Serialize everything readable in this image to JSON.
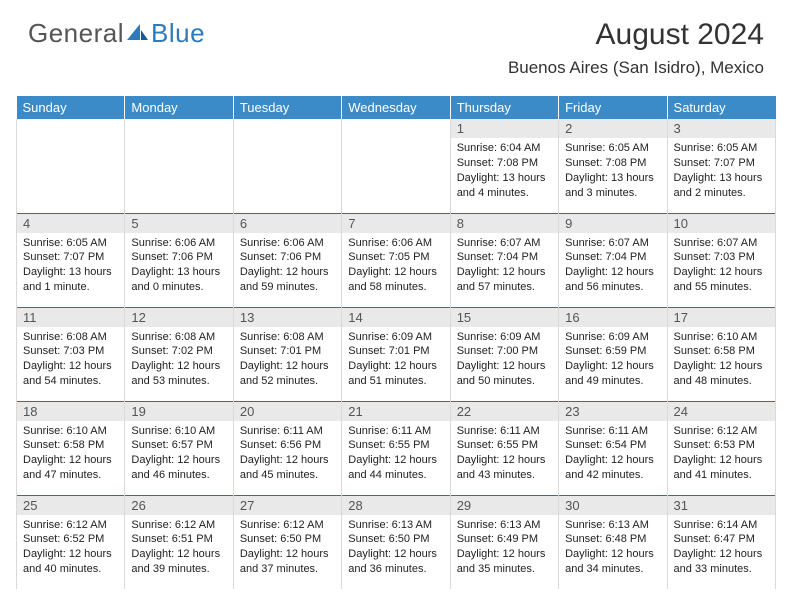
{
  "brand": {
    "part1": "General",
    "part2": "Blue"
  },
  "title": "August 2024",
  "location": "Buenos Aires (San Isidro), Mexico",
  "colors": {
    "header_bg": "#3b8bc9",
    "header_text": "#ffffff",
    "row_divider": "#2d6fa3",
    "daynum_bg": "#e9e9e9",
    "cell_border": "#d9d9d9",
    "brand_gray": "#555555",
    "brand_blue": "#2d7bbd"
  },
  "typography": {
    "title_fontsize": 30,
    "location_fontsize": 17,
    "header_fontsize": 13,
    "daynum_fontsize": 13,
    "body_fontsize": 11
  },
  "day_headers": [
    "Sunday",
    "Monday",
    "Tuesday",
    "Wednesday",
    "Thursday",
    "Friday",
    "Saturday"
  ],
  "weeks": [
    [
      null,
      null,
      null,
      null,
      {
        "n": "1",
        "sr": "6:04 AM",
        "ss": "7:08 PM",
        "dl": "13 hours and 4 minutes."
      },
      {
        "n": "2",
        "sr": "6:05 AM",
        "ss": "7:08 PM",
        "dl": "13 hours and 3 minutes."
      },
      {
        "n": "3",
        "sr": "6:05 AM",
        "ss": "7:07 PM",
        "dl": "13 hours and 2 minutes."
      }
    ],
    [
      {
        "n": "4",
        "sr": "6:05 AM",
        "ss": "7:07 PM",
        "dl": "13 hours and 1 minute."
      },
      {
        "n": "5",
        "sr": "6:06 AM",
        "ss": "7:06 PM",
        "dl": "13 hours and 0 minutes."
      },
      {
        "n": "6",
        "sr": "6:06 AM",
        "ss": "7:06 PM",
        "dl": "12 hours and 59 minutes."
      },
      {
        "n": "7",
        "sr": "6:06 AM",
        "ss": "7:05 PM",
        "dl": "12 hours and 58 minutes."
      },
      {
        "n": "8",
        "sr": "6:07 AM",
        "ss": "7:04 PM",
        "dl": "12 hours and 57 minutes."
      },
      {
        "n": "9",
        "sr": "6:07 AM",
        "ss": "7:04 PM",
        "dl": "12 hours and 56 minutes."
      },
      {
        "n": "10",
        "sr": "6:07 AM",
        "ss": "7:03 PM",
        "dl": "12 hours and 55 minutes."
      }
    ],
    [
      {
        "n": "11",
        "sr": "6:08 AM",
        "ss": "7:03 PM",
        "dl": "12 hours and 54 minutes."
      },
      {
        "n": "12",
        "sr": "6:08 AM",
        "ss": "7:02 PM",
        "dl": "12 hours and 53 minutes."
      },
      {
        "n": "13",
        "sr": "6:08 AM",
        "ss": "7:01 PM",
        "dl": "12 hours and 52 minutes."
      },
      {
        "n": "14",
        "sr": "6:09 AM",
        "ss": "7:01 PM",
        "dl": "12 hours and 51 minutes."
      },
      {
        "n": "15",
        "sr": "6:09 AM",
        "ss": "7:00 PM",
        "dl": "12 hours and 50 minutes."
      },
      {
        "n": "16",
        "sr": "6:09 AM",
        "ss": "6:59 PM",
        "dl": "12 hours and 49 minutes."
      },
      {
        "n": "17",
        "sr": "6:10 AM",
        "ss": "6:58 PM",
        "dl": "12 hours and 48 minutes."
      }
    ],
    [
      {
        "n": "18",
        "sr": "6:10 AM",
        "ss": "6:58 PM",
        "dl": "12 hours and 47 minutes."
      },
      {
        "n": "19",
        "sr": "6:10 AM",
        "ss": "6:57 PM",
        "dl": "12 hours and 46 minutes."
      },
      {
        "n": "20",
        "sr": "6:11 AM",
        "ss": "6:56 PM",
        "dl": "12 hours and 45 minutes."
      },
      {
        "n": "21",
        "sr": "6:11 AM",
        "ss": "6:55 PM",
        "dl": "12 hours and 44 minutes."
      },
      {
        "n": "22",
        "sr": "6:11 AM",
        "ss": "6:55 PM",
        "dl": "12 hours and 43 minutes."
      },
      {
        "n": "23",
        "sr": "6:11 AM",
        "ss": "6:54 PM",
        "dl": "12 hours and 42 minutes."
      },
      {
        "n": "24",
        "sr": "6:12 AM",
        "ss": "6:53 PM",
        "dl": "12 hours and 41 minutes."
      }
    ],
    [
      {
        "n": "25",
        "sr": "6:12 AM",
        "ss": "6:52 PM",
        "dl": "12 hours and 40 minutes."
      },
      {
        "n": "26",
        "sr": "6:12 AM",
        "ss": "6:51 PM",
        "dl": "12 hours and 39 minutes."
      },
      {
        "n": "27",
        "sr": "6:12 AM",
        "ss": "6:50 PM",
        "dl": "12 hours and 37 minutes."
      },
      {
        "n": "28",
        "sr": "6:13 AM",
        "ss": "6:50 PM",
        "dl": "12 hours and 36 minutes."
      },
      {
        "n": "29",
        "sr": "6:13 AM",
        "ss": "6:49 PM",
        "dl": "12 hours and 35 minutes."
      },
      {
        "n": "30",
        "sr": "6:13 AM",
        "ss": "6:48 PM",
        "dl": "12 hours and 34 minutes."
      },
      {
        "n": "31",
        "sr": "6:14 AM",
        "ss": "6:47 PM",
        "dl": "12 hours and 33 minutes."
      }
    ]
  ],
  "labels": {
    "sunrise": "Sunrise:",
    "sunset": "Sunset:",
    "daylight": "Daylight:"
  }
}
